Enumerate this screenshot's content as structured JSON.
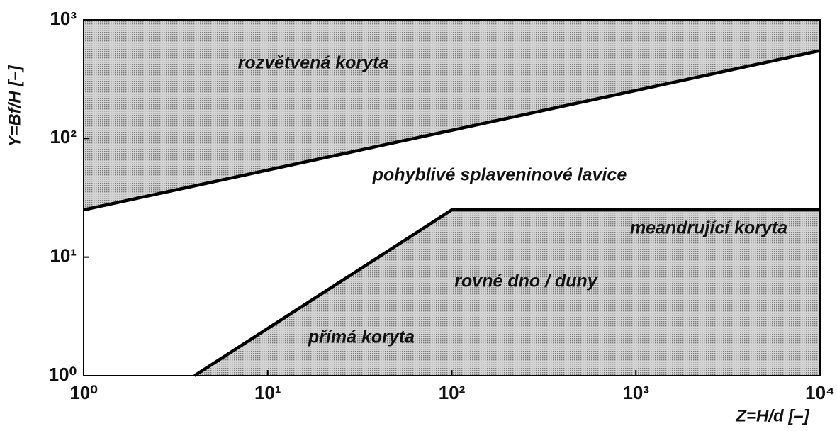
{
  "chart_data": {
    "type": "line",
    "xlabel": "Z=H/d [–]",
    "ylabel": "Y=Bf/H [–]",
    "xscale": "log",
    "yscale": "log",
    "xlim": [
      1,
      10000
    ],
    "ylim": [
      1,
      1000
    ],
    "xticks": [
      {
        "value": 1,
        "label": "10⁰"
      },
      {
        "value": 10,
        "label": "10¹"
      },
      {
        "value": 100,
        "label": "10²"
      },
      {
        "value": 1000,
        "label": "10³"
      },
      {
        "value": 10000,
        "label": "10⁴"
      }
    ],
    "yticks": [
      {
        "value": 1,
        "label": "10⁰"
      },
      {
        "value": 10,
        "label": "10¹"
      },
      {
        "value": 100,
        "label": "10²"
      },
      {
        "value": 1000,
        "label": "10³"
      }
    ],
    "series": [
      {
        "color": "#000000",
        "fill": "above",
        "x": [
          1,
          10000
        ],
        "values": [
          25,
          550
        ]
      },
      {
        "color": "#000000",
        "fill": "below",
        "x": [
          4,
          100,
          10000
        ],
        "values": [
          1,
          25,
          25
        ]
      }
    ],
    "annotations": [
      "rozvětvená koryta",
      "pohyblivé splaveninové lavice",
      "meandrující koryta",
      "rovné dno  /  duny",
      "přímá koryta"
    ]
  }
}
